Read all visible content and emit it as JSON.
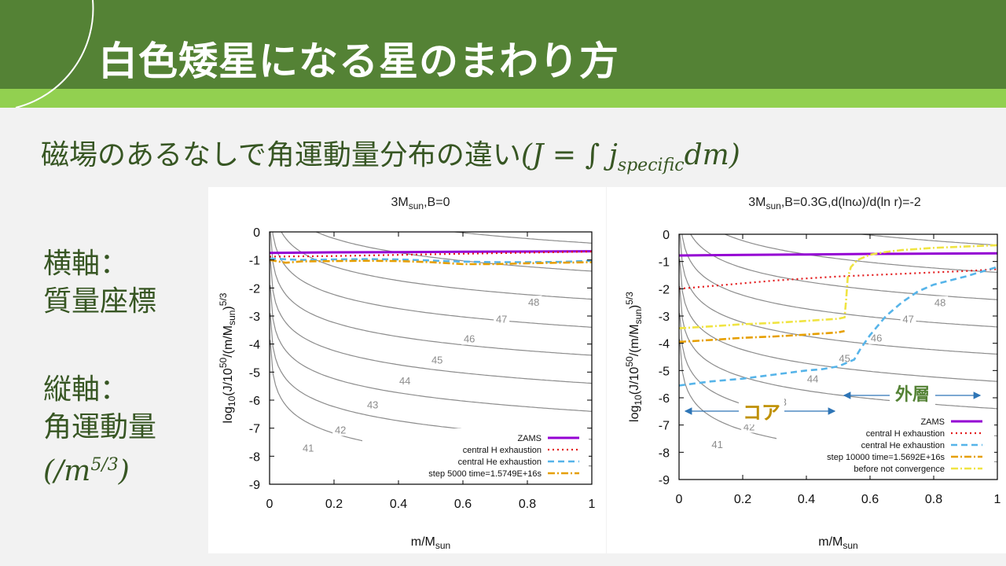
{
  "slide": {
    "title": "白色矮星になる星のまわり方",
    "subtitle_text": "磁場のあるなしで角運動量分布の違い",
    "subtitle_formula": {
      "open": "(J = ∫ j",
      "sub": "specific",
      "close": "dm)"
    },
    "side": {
      "xaxis_label": "横軸：",
      "xaxis_value": "質量座標",
      "yaxis_label": "縦軸：",
      "yaxis_value": "角運動量",
      "yaxis_unit": {
        "open": "(/m",
        "sup": "5/3",
        "close": ")"
      }
    }
  },
  "colors": {
    "header": "#548235",
    "stripe": "#92d050",
    "text_green": "#375623",
    "annotation_gold": "#bf9000",
    "annotation_green": "#548235",
    "arrow_blue": "#2e75b6"
  },
  "chart_data": [
    {
      "type": "line",
      "title": "3Msun,B=0",
      "title_parts": {
        "pre": "3M",
        "sub": "sun",
        "post": ",B=0"
      },
      "xlabel": {
        "pre": "m/M",
        "sub": "sun"
      },
      "ylabel": {
        "a": "log",
        "a_sub": "10",
        "b": "(J/10",
        "b_sup": "50",
        "c": "/(m/M",
        "c_sub": "sun",
        "d": ")",
        "d_sup": "5/3"
      },
      "xlim": [
        0,
        1
      ],
      "ylim": [
        -9,
        0
      ],
      "xticks": [
        "0",
        "0.2",
        "0.4",
        "0.6",
        "0.8",
        "1"
      ],
      "yticks": [
        "0",
        "-1",
        "-2",
        "-3",
        "-4",
        "-5",
        "-6",
        "-7",
        "-8",
        "-9"
      ],
      "contours": [
        {
          "label": "41",
          "k": -8.35,
          "pos": [
            0.12,
            -7.7
          ]
        },
        {
          "label": "42",
          "k": -7.4,
          "pos": [
            0.22,
            -7.05
          ]
        },
        {
          "label": "43",
          "k": -6.4,
          "pos": [
            0.32,
            -6.15
          ]
        },
        {
          "label": "44",
          "k": -5.4,
          "pos": [
            0.42,
            -5.3
          ]
        },
        {
          "label": "45",
          "k": -4.4,
          "pos": [
            0.52,
            -4.55
          ]
        },
        {
          "label": "46",
          "k": -3.4,
          "pos": [
            0.62,
            -3.8
          ]
        },
        {
          "label": "47",
          "k": -2.4,
          "pos": [
            0.72,
            -3.1
          ]
        },
        {
          "label": "48",
          "k": -1.4,
          "pos": [
            0.82,
            -2.5
          ]
        },
        {
          "label": "",
          "k": -0.4,
          "pos": null
        },
        {
          "label": "",
          "k": 0.6,
          "pos": null
        }
      ],
      "series": [
        {
          "name": "ZAMS",
          "color": "#9400d3",
          "dash": "",
          "width": 3,
          "x": [
            0,
            0.2,
            0.4,
            0.6,
            0.8,
            1.0
          ],
          "y": [
            -0.75,
            -0.73,
            -0.72,
            -0.71,
            -0.7,
            -0.69
          ]
        },
        {
          "name": "central H exhaustion",
          "color": "#e31a1c",
          "dash": "2,4",
          "width": 2.2,
          "x": [
            0,
            0.2,
            0.4,
            0.6,
            0.8,
            1.0
          ],
          "y": [
            -0.88,
            -0.86,
            -0.82,
            -0.78,
            -0.74,
            -0.7
          ]
        },
        {
          "name": "central He exhaustion",
          "color": "#56b4e9",
          "dash": "8,5",
          "width": 2.6,
          "x": [
            0,
            0.1,
            0.2,
            0.3,
            0.4,
            0.5,
            0.6,
            0.7,
            0.8,
            0.9,
            1.0
          ],
          "y": [
            -0.95,
            -1.0,
            -0.98,
            -0.97,
            -0.98,
            -1.02,
            -1.06,
            -1.08,
            -1.08,
            -1.07,
            -1.03
          ]
        },
        {
          "name": "step 5000 time=1.5749E+16s",
          "color": "#e69f00",
          "dash": "9,3,2,3",
          "width": 2.6,
          "x": [
            0,
            0.05,
            0.1,
            0.2,
            0.3,
            0.4,
            0.5,
            0.6,
            0.7,
            0.8,
            0.9,
            1.0
          ],
          "y": [
            -1.0,
            -1.1,
            -1.05,
            -1.04,
            -1.03,
            -1.04,
            -1.08,
            -1.15,
            -1.15,
            -1.12,
            -1.1,
            -1.08
          ]
        }
      ],
      "legend_position": "bottom-right"
    },
    {
      "type": "line",
      "title": "3Msun,B=0.3G,d(lnω)/d(ln r)=-2",
      "title_parts": {
        "pre": "3M",
        "sub": "sun",
        "post": ",B=0.3G,d(lnω)/d(ln r)=-2"
      },
      "xlabel": {
        "pre": "m/M",
        "sub": "sun"
      },
      "ylabel": {
        "a": "log",
        "a_sub": "10",
        "b": "(J/10",
        "b_sup": "50",
        "c": "/(m/M",
        "c_sub": "sun",
        "d": ")",
        "d_sup": "5/3"
      },
      "xlim": [
        0,
        1
      ],
      "ylim": [
        -9,
        0
      ],
      "xticks": [
        "0",
        "0.2",
        "0.4",
        "0.6",
        "0.8",
        "1"
      ],
      "yticks": [
        "0",
        "-1",
        "-2",
        "-3",
        "-4",
        "-5",
        "-6",
        "-7",
        "-8",
        "-9"
      ],
      "contours": [
        {
          "label": "41",
          "k": -8.35,
          "pos": [
            0.12,
            -7.7
          ]
        },
        {
          "label": "42",
          "k": -7.4,
          "pos": [
            0.22,
            -7.05
          ]
        },
        {
          "label": "43",
          "k": -6.4,
          "pos": [
            0.32,
            -6.15
          ]
        },
        {
          "label": "44",
          "k": -5.4,
          "pos": [
            0.42,
            -5.3
          ]
        },
        {
          "label": "45",
          "k": -4.4,
          "pos": [
            0.52,
            -4.55
          ]
        },
        {
          "label": "46",
          "k": -3.4,
          "pos": [
            0.62,
            -3.8
          ]
        },
        {
          "label": "47",
          "k": -2.4,
          "pos": [
            0.72,
            -3.1
          ]
        },
        {
          "label": "48",
          "k": -1.4,
          "pos": [
            0.82,
            -2.5
          ]
        },
        {
          "label": "",
          "k": -0.4,
          "pos": null
        },
        {
          "label": "",
          "k": 0.6,
          "pos": null
        }
      ],
      "series": [
        {
          "name": "ZAMS",
          "color": "#9400d3",
          "dash": "",
          "width": 3,
          "x": [
            0,
            0.2,
            0.4,
            0.6,
            0.8,
            1.0
          ],
          "y": [
            -0.78,
            -0.76,
            -0.74,
            -0.72,
            -0.71,
            -0.7
          ]
        },
        {
          "name": "central H exhaustion",
          "color": "#e31a1c",
          "dash": "2,4",
          "width": 2.2,
          "x": [
            0,
            0.1,
            0.2,
            0.3,
            0.4,
            0.5,
            0.6,
            0.7,
            0.8,
            0.9,
            1.0
          ],
          "y": [
            -2.0,
            -1.9,
            -1.8,
            -1.7,
            -1.62,
            -1.55,
            -1.5,
            -1.45,
            -1.4,
            -1.35,
            -1.28
          ]
        },
        {
          "name": "central He exhaustion",
          "color": "#56b4e9",
          "dash": "8,5",
          "width": 2.6,
          "x": [
            0,
            0.1,
            0.2,
            0.3,
            0.4,
            0.45,
            0.5,
            0.55,
            0.57,
            0.6,
            0.65,
            0.7,
            0.75,
            0.8,
            0.9,
            1.0
          ],
          "y": [
            -5.55,
            -5.4,
            -5.3,
            -5.15,
            -5.0,
            -4.95,
            -4.85,
            -4.6,
            -4.2,
            -3.7,
            -3.0,
            -2.5,
            -2.1,
            -1.85,
            -1.55,
            -1.2
          ]
        },
        {
          "name": "step 10000 time=1.5692E+16s",
          "color": "#e69f00",
          "dash": "9,3,2,3",
          "width": 2.6,
          "x": [
            0,
            0.1,
            0.2,
            0.3,
            0.4,
            0.5,
            0.52
          ],
          "y": [
            -3.95,
            -3.88,
            -3.8,
            -3.75,
            -3.68,
            -3.6,
            -3.55
          ]
        },
        {
          "name": "before not convergence",
          "color": "#f0e442",
          "dash": "9,3,2,3",
          "width": 2.6,
          "x": [
            0,
            0.1,
            0.2,
            0.3,
            0.4,
            0.5,
            0.52,
            0.525,
            0.53,
            0.54,
            0.56,
            0.6,
            0.65,
            0.7,
            0.8,
            0.9,
            1.0
          ],
          "y": [
            -3.45,
            -3.38,
            -3.3,
            -3.25,
            -3.18,
            -3.1,
            -3.05,
            -2.4,
            -1.6,
            -1.2,
            -0.95,
            -0.75,
            -0.65,
            -0.58,
            -0.5,
            -0.45,
            -0.4
          ]
        }
      ],
      "annotations": {
        "core": "コア",
        "envelope": "外層"
      },
      "legend_position": "bottom-right"
    }
  ]
}
